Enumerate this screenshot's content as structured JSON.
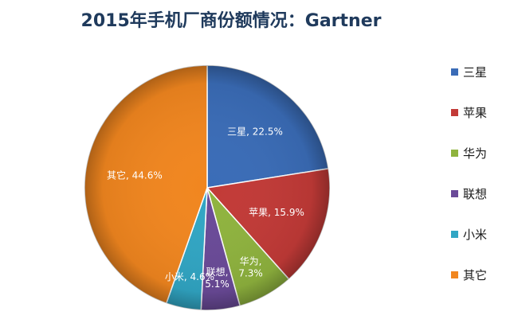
{
  "chart_data": {
    "type": "pie",
    "title": "2015年手机厂商份额情况：Gartner",
    "slices": [
      {
        "label": "三星",
        "value": 22.5,
        "data_label": "三星, 22.5%",
        "color": "#3a6cb7"
      },
      {
        "label": "苹果",
        "value": 15.9,
        "data_label": "苹果, 15.9%",
        "color": "#c23a37"
      },
      {
        "label": "华为",
        "value": 7.3,
        "data_label": "华为,\n7.3%",
        "color": "#8fb33e"
      },
      {
        "label": "联想",
        "value": 5.1,
        "data_label": "联想,\n5.1%",
        "color": "#6a4a98"
      },
      {
        "label": "小米",
        "value": 4.6,
        "data_label": "小米, 4.6%",
        "color": "#31a6c4"
      },
      {
        "label": "其它",
        "value": 44.6,
        "data_label": "其它, 44.6%",
        "color": "#f1861f"
      }
    ],
    "legend_position": "right"
  }
}
